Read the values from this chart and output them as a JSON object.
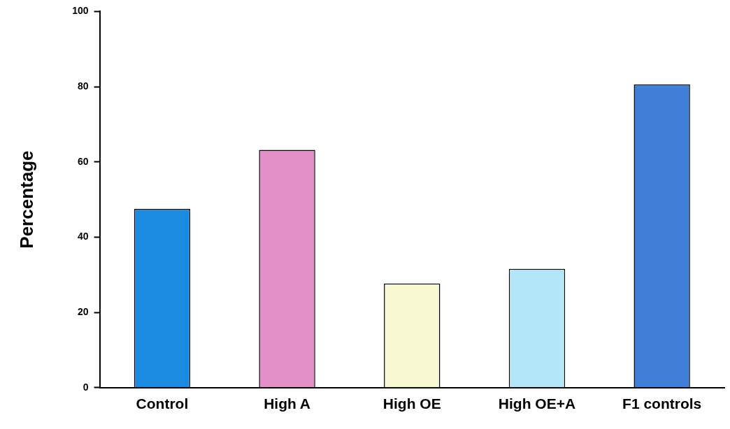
{
  "chart_data": {
    "type": "bar",
    "ylabel": "Percentage",
    "categories": [
      "Control",
      "High A",
      "High OE",
      "High OE+A",
      "F1 controls"
    ],
    "values": [
      47.5,
      63.2,
      27.7,
      31.6,
      80.6
    ],
    "colors": [
      "#1a8be0",
      "#e38fc8",
      "#f8f8d2",
      "#b3e6f8",
      "#3f7fd8"
    ],
    "ylim": [
      0,
      100
    ],
    "yticks": [
      0,
      20,
      40,
      60,
      80,
      100
    ],
    "grid": false,
    "legend": false
  }
}
